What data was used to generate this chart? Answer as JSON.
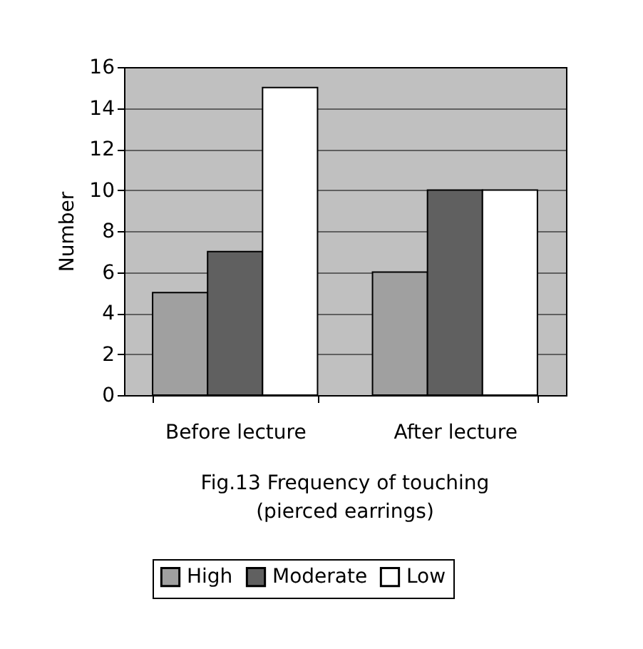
{
  "chart_data": {
    "type": "bar",
    "title": "Fig.13  Frequency of touching\n(pierced earrings)",
    "ylabel": "Number",
    "categories": [
      "Before lecture",
      "After lecture"
    ],
    "series": [
      {
        "name": "High",
        "color": "#a0a0a0",
        "values": [
          5,
          6
        ]
      },
      {
        "name": "Moderate",
        "color": "#606060",
        "values": [
          7,
          10
        ]
      },
      {
        "name": "Low",
        "color": "#ffffff",
        "values": [
          15,
          10
        ]
      }
    ],
    "ylim": [
      0,
      16
    ],
    "yticks": [
      0,
      2,
      4,
      6,
      8,
      10,
      12,
      14,
      16
    ],
    "grid": "y",
    "legend": "bottom"
  }
}
